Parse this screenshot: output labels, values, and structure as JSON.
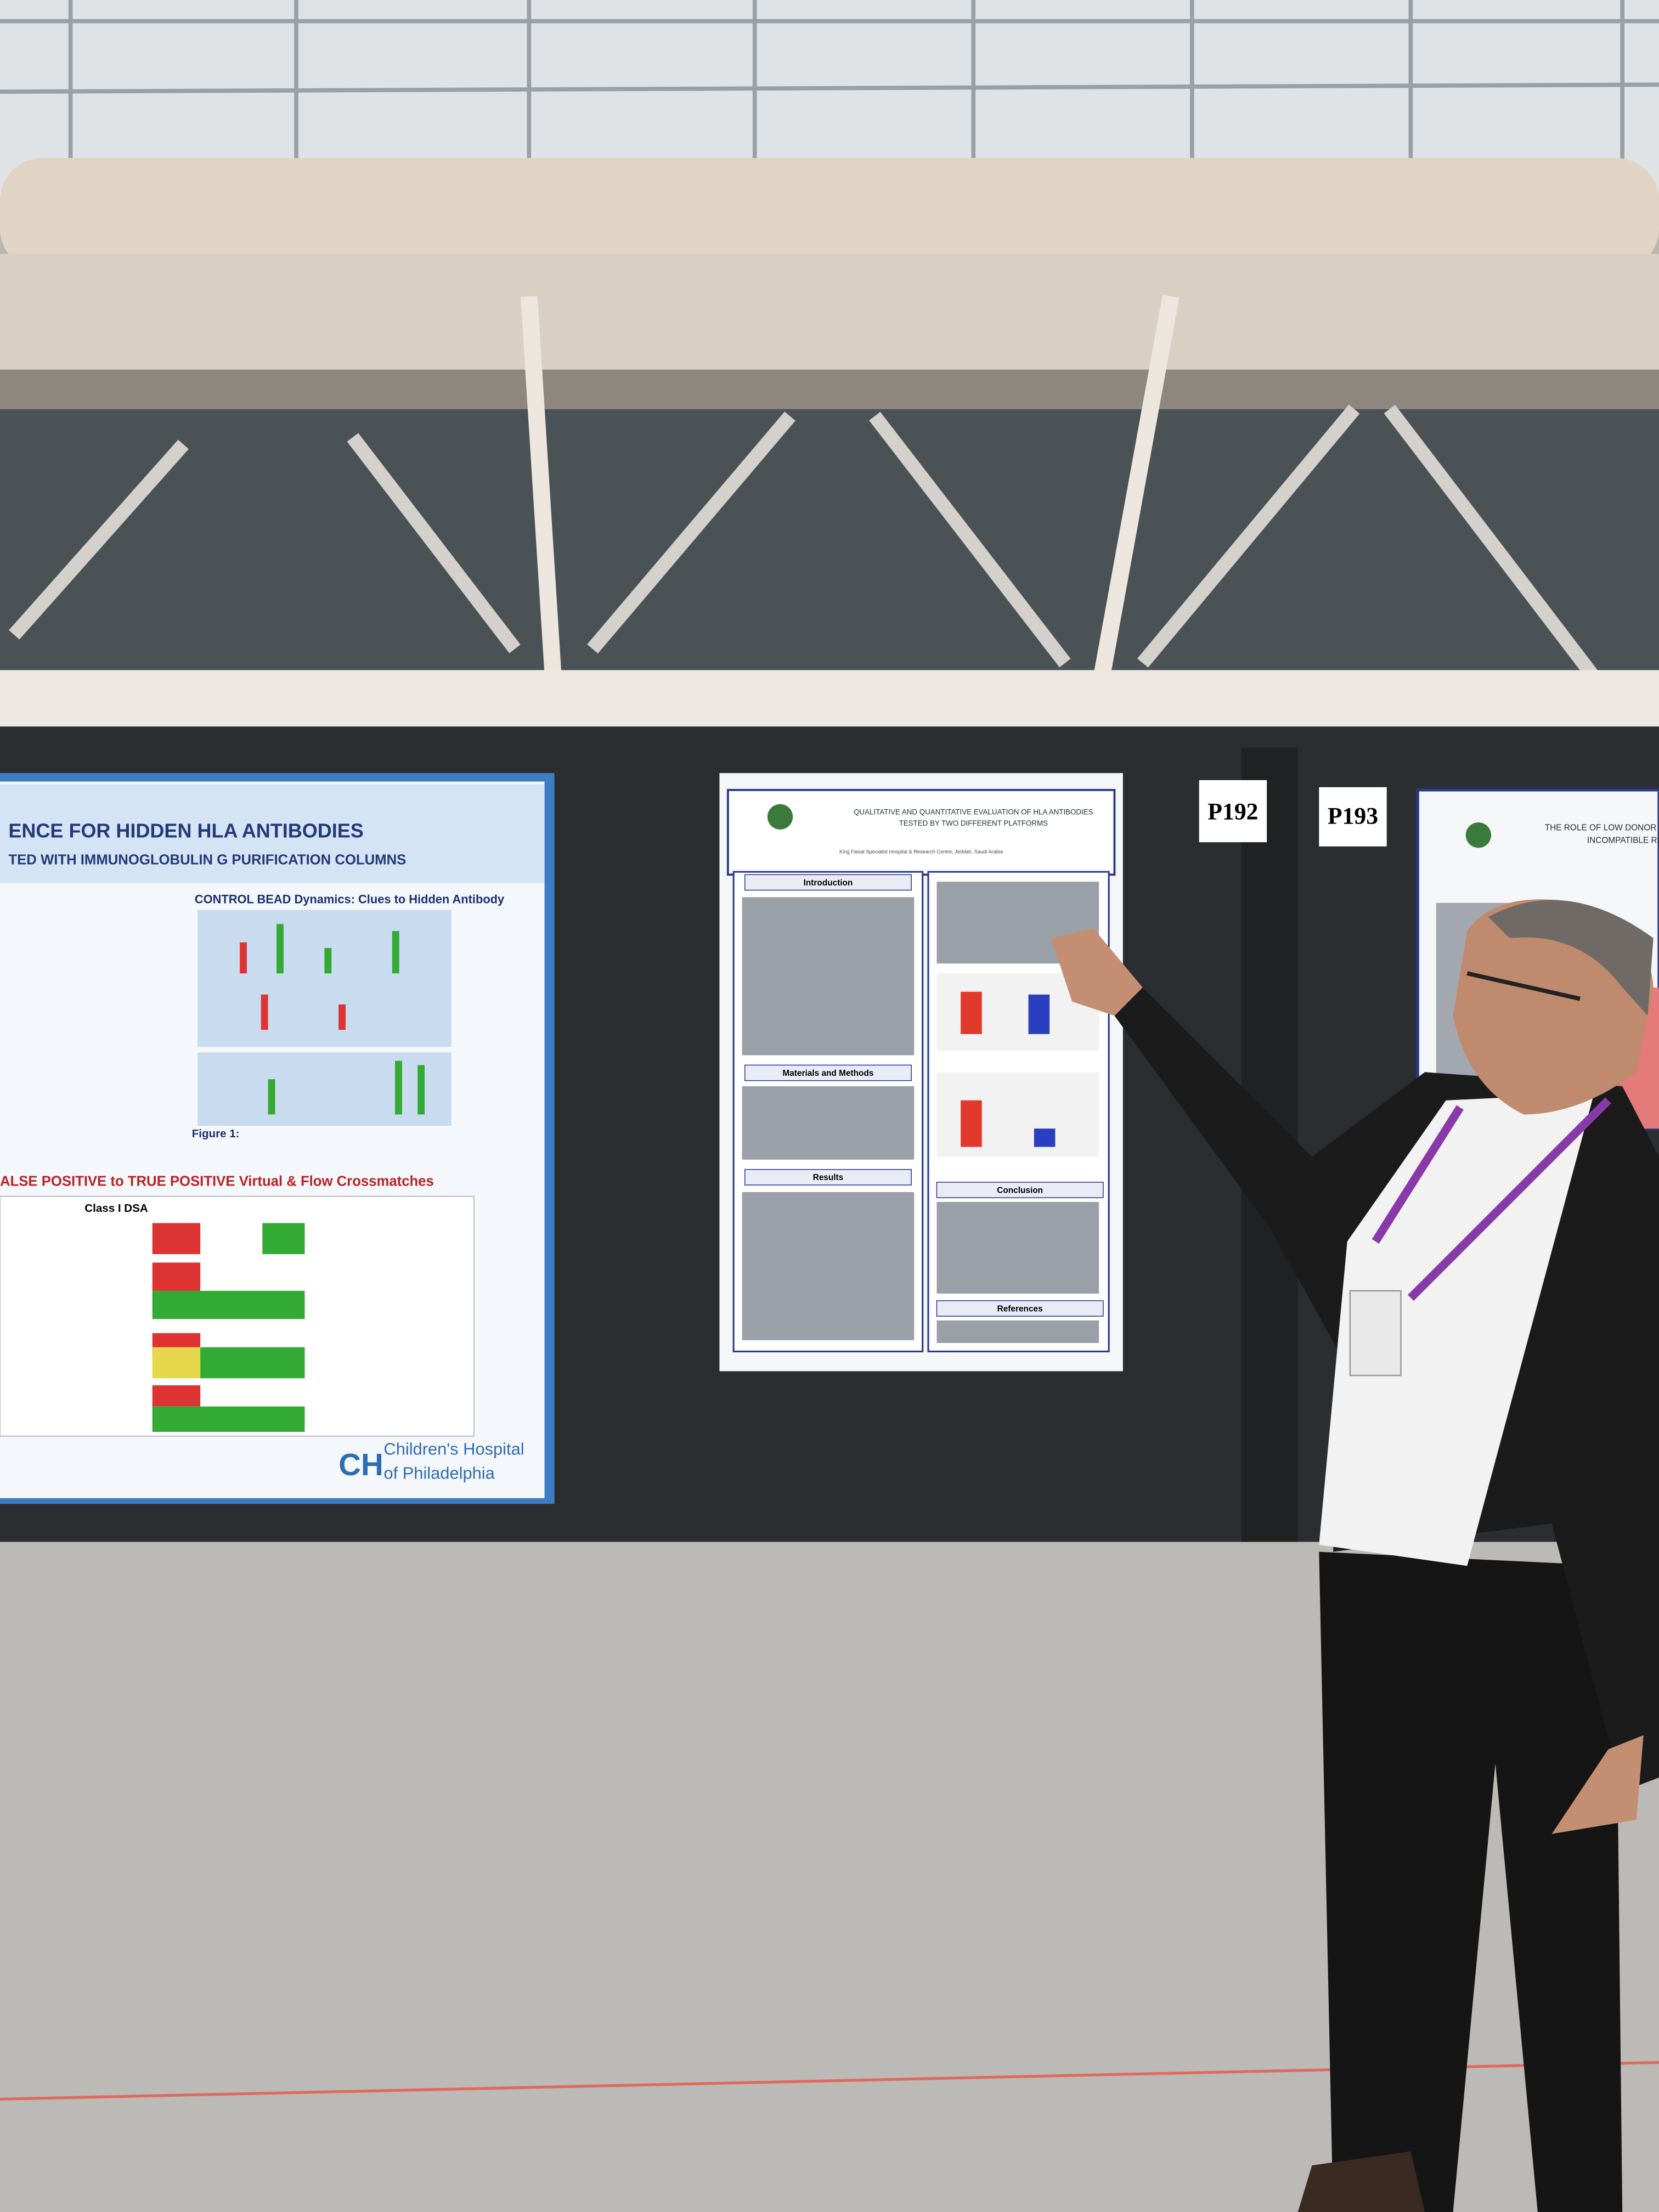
{
  "board_labels": [
    "P192",
    "P193"
  ],
  "left_poster": {
    "title_1": "ENCE FOR HIDDEN HLA ANTIBODIES",
    "title_2": "TED WITH IMMUNOGLOBULIN G PURIFICATION COLUMNS",
    "section_1": "CONTROL BEAD Dynamics: Clues to Hidden Antibody",
    "section_2": "ALSE POSITIVE to TRUE POSITIVE Virtual & Flow Crossmatches",
    "table_header": "Class I DSA",
    "figure_caption": "Figure 1:",
    "logo_line_1": "Children's Hospital",
    "logo_line_2": "of Philadelphia"
  },
  "center_poster": {
    "title_1": "QUALITATIVE AND QUANTITATIVE EVALUATION OF HLA ANTIBODIES",
    "title_2": "TESTED BY TWO DIFFERENT PLATFORMS",
    "affiliation": "King Faisal Specialist Hospital & Research Centre, Jeddah, Saudi Arabia",
    "sections": [
      "Introduction",
      "Materials and Methods",
      "Results",
      "Conclusion",
      "References"
    ]
  },
  "right_poster": {
    "title_1": "THE ROLE OF LOW DONOR S",
    "title_2": "INCOMPATIBLE RE"
  }
}
